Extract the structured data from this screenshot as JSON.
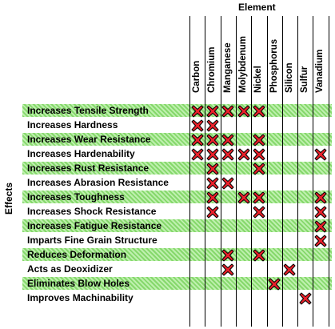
{
  "chart_data": {
    "type": "table",
    "xlabel": "Element",
    "ylabel": "Effects",
    "columns": [
      "Carbon",
      "Chromium",
      "Manganese",
      "Molybdenum",
      "Nickel",
      "Phosphorus",
      "Silicon",
      "Sulfur",
      "Vanadium"
    ],
    "rows": [
      {
        "effect": "Increases Tensile Strength",
        "elements": [
          "Carbon",
          "Chromium",
          "Manganese",
          "Molybdenum",
          "Nickel"
        ]
      },
      {
        "effect": "Increases Hardness",
        "elements": [
          "Carbon",
          "Chromium"
        ]
      },
      {
        "effect": "Increases Wear Resistance",
        "elements": [
          "Carbon",
          "Chromium",
          "Manganese",
          "Nickel"
        ]
      },
      {
        "effect": "Increases Hardenability",
        "elements": [
          "Carbon",
          "Chromium",
          "Manganese",
          "Molybdenum",
          "Nickel",
          "Vanadium"
        ]
      },
      {
        "effect": "Increases Rust Resistance",
        "elements": [
          "Chromium",
          "Nickel"
        ]
      },
      {
        "effect": "Increases Abrasion Resistance",
        "elements": [
          "Chromium",
          "Manganese"
        ]
      },
      {
        "effect": "Increases Toughness",
        "elements": [
          "Chromium",
          "Molybdenum",
          "Nickel",
          "Vanadium"
        ]
      },
      {
        "effect": "Increases Shock Resistance",
        "elements": [
          "Chromium",
          "Nickel",
          "Vanadium"
        ]
      },
      {
        "effect": "Increases Fatigue Resistance",
        "elements": [
          "Vanadium"
        ]
      },
      {
        "effect": "Imparts Fine Grain Structure",
        "elements": [
          "Vanadium"
        ]
      },
      {
        "effect": "Reduces Deformation",
        "elements": [
          "Manganese",
          "Nickel"
        ]
      },
      {
        "effect": "Acts as Deoxidizer",
        "elements": [
          "Manganese",
          "Silicon"
        ]
      },
      {
        "effect": "Eliminates Blow Holes",
        "elements": [
          "Phosphorus"
        ]
      },
      {
        "effect": "Improves Machinability",
        "elements": [
          "Sulfur"
        ]
      }
    ],
    "colors": {
      "band": "#86d86c",
      "mark_fill": "#e8202a",
      "mark_stroke": "#000000"
    }
  }
}
